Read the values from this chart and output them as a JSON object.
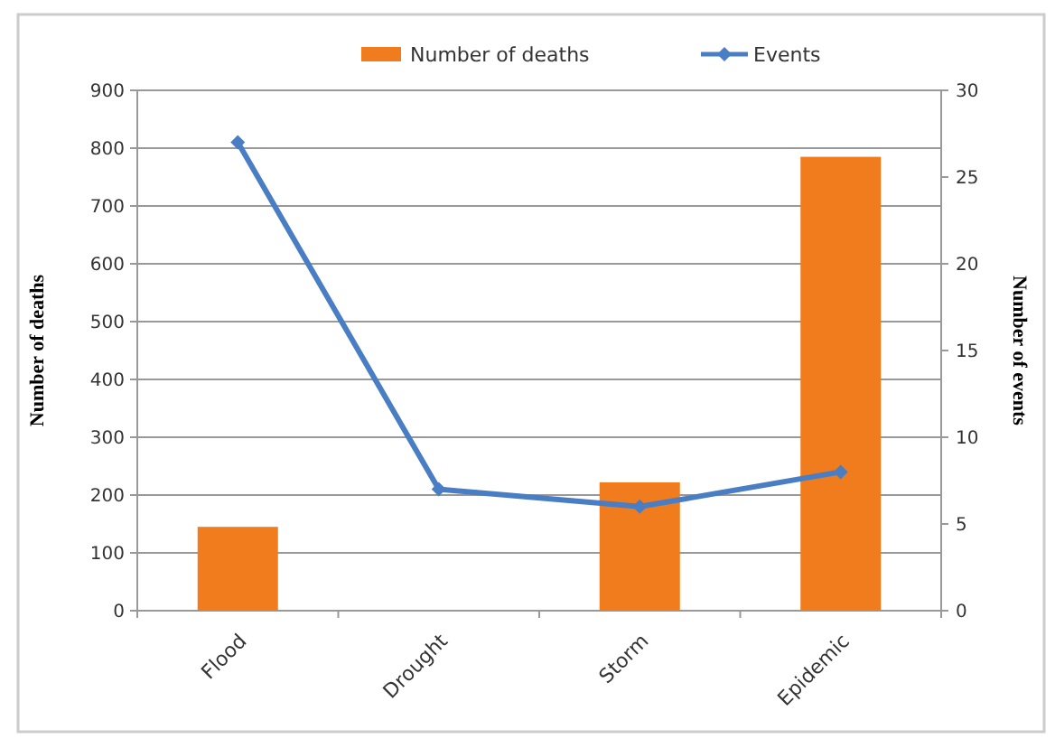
{
  "chart_data": {
    "type": "bar",
    "categories": [
      "Flood",
      "Drought",
      "Storm",
      "Epidemic"
    ],
    "series": [
      {
        "name": "Number of deaths",
        "color": "#f07c1e",
        "values": [
          145,
          0,
          222,
          785
        ]
      },
      {
        "name": "Events",
        "color": "#4a7ec4",
        "values": [
          27,
          7,
          6,
          8
        ],
        "type": "line",
        "axis": "y2"
      }
    ],
    "ylabel": "Number of deaths",
    "y2label": "Number of events",
    "ylim": [
      0,
      900
    ],
    "yticks": [
      0,
      100,
      200,
      300,
      400,
      500,
      600,
      700,
      800,
      900
    ],
    "y2lim": [
      0,
      30
    ],
    "y2ticks": [
      0,
      5,
      10,
      15,
      20,
      25,
      30
    ],
    "grid": "y",
    "legend": "top",
    "marker": "diamond"
  }
}
